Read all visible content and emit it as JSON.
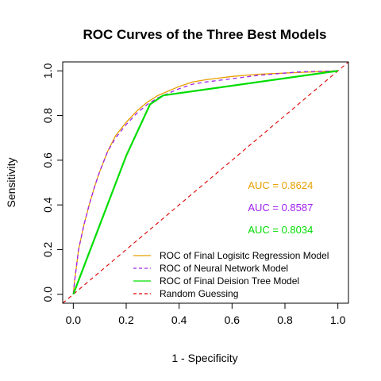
{
  "chart_data": {
    "type": "line",
    "title": "ROC Curves of the Three Best Models",
    "xlabel": "1 - Specificity",
    "ylabel": "Sensitivity",
    "xlim": [
      -0.04,
      1.04
    ],
    "ylim": [
      -0.04,
      1.04
    ],
    "xticks": [
      "0.0",
      "0.2",
      "0.4",
      "0.6",
      "0.8",
      "1.0"
    ],
    "yticks": [
      "0.0",
      "0.2",
      "0.4",
      "0.6",
      "0.8",
      "1.0"
    ],
    "grid": false,
    "legend_position": "bottom-right",
    "series": [
      {
        "name": "ROC of Final Logisitc Regression Model",
        "color": "#E69F00",
        "dash": "solid",
        "x": [
          0,
          0.005,
          0.02,
          0.04,
          0.06,
          0.08,
          0.1,
          0.13,
          0.16,
          0.2,
          0.24,
          0.28,
          0.32,
          0.36,
          0.4,
          0.45,
          0.5,
          0.6,
          0.7,
          0.8,
          0.9,
          0.95,
          1.0
        ],
        "y": [
          0,
          0.06,
          0.2,
          0.31,
          0.4,
          0.48,
          0.55,
          0.64,
          0.71,
          0.77,
          0.82,
          0.86,
          0.89,
          0.91,
          0.93,
          0.95,
          0.96,
          0.975,
          0.985,
          0.99,
          0.995,
          0.998,
          1.0
        ]
      },
      {
        "name": "ROC of Neural Network Model",
        "color": "#A020F0",
        "dash": "dashed",
        "x": [
          0,
          0.005,
          0.02,
          0.04,
          0.06,
          0.08,
          0.1,
          0.13,
          0.16,
          0.2,
          0.24,
          0.28,
          0.32,
          0.36,
          0.4,
          0.45,
          0.5,
          0.6,
          0.7,
          0.8,
          0.85,
          0.9,
          1.0
        ],
        "y": [
          0,
          0.06,
          0.2,
          0.31,
          0.4,
          0.48,
          0.55,
          0.64,
          0.7,
          0.76,
          0.81,
          0.85,
          0.88,
          0.9,
          0.92,
          0.94,
          0.95,
          0.965,
          0.98,
          0.99,
          0.995,
          0.997,
          1.0
        ]
      },
      {
        "name": "ROC of Final Deision Tree Model",
        "color": "#00DD00",
        "dash": "solid",
        "x": [
          0,
          0.2,
          0.29,
          0.34,
          1.0
        ],
        "y": [
          0,
          0.62,
          0.85,
          0.89,
          1.0
        ]
      },
      {
        "name": "Random Guessing",
        "color": "#DD0000",
        "dash": "dashed",
        "x": [
          -0.04,
          1.04
        ],
        "y": [
          -0.04,
          1.04
        ]
      }
    ],
    "annotations": [
      {
        "text": "AUC =  0.8624",
        "color": "#E69F00",
        "x": 0.66,
        "y": 0.49
      },
      {
        "text": "AUC =  0.8587",
        "color": "#A020F0",
        "x": 0.66,
        "y": 0.39
      },
      {
        "text": "AUC =  0.8034",
        "color": "#00DD00",
        "x": 0.66,
        "y": 0.29
      }
    ]
  }
}
